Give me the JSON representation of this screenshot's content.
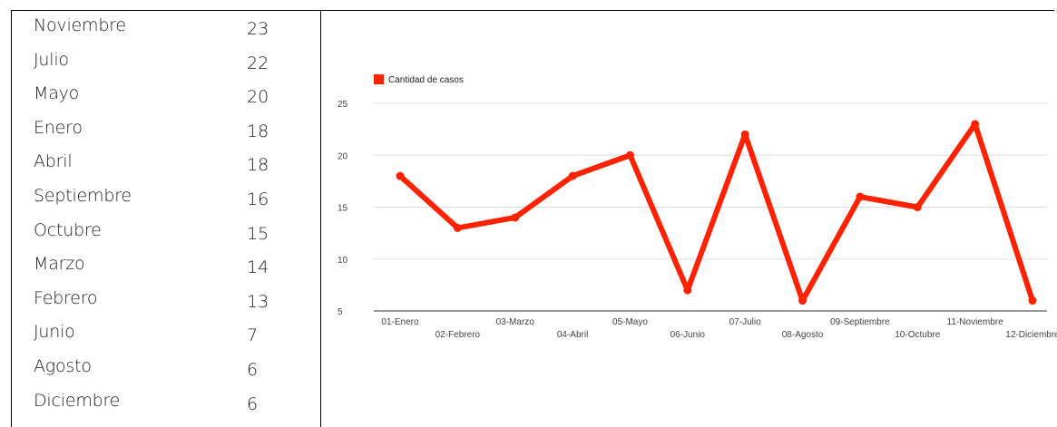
{
  "table": {
    "rows": [
      {
        "month": "Noviembre",
        "value": "23"
      },
      {
        "month": "Julio",
        "value": "22"
      },
      {
        "month": "Mayo",
        "value": "20"
      },
      {
        "month": "Enero",
        "value": "18"
      },
      {
        "month": "Abril",
        "value": "18"
      },
      {
        "month": "Septiembre",
        "value": "16"
      },
      {
        "month": "Octubre",
        "value": "15"
      },
      {
        "month": "Marzo",
        "value": "14"
      },
      {
        "month": "Febrero",
        "value": "13"
      },
      {
        "month": "Junio",
        "value": "7"
      },
      {
        "month": "Agosto",
        "value": "6"
      },
      {
        "month": "Diciembre",
        "value": "6"
      }
    ]
  },
  "chart_data": {
    "type": "line",
    "categories": [
      "01-Enero",
      "02-Febrero",
      "03-Marzo",
      "04-Abril",
      "05-Mayo",
      "06-Junio",
      "07-Julio",
      "08-Agosto",
      "09-Septiembre",
      "10-Octubre",
      "11-Noviembre",
      "12-Diciembre"
    ],
    "series": [
      {
        "name": "Cantidad de casos",
        "values": [
          18,
          13,
          14,
          18,
          20,
          7,
          22,
          6,
          16,
          15,
          23,
          6
        ],
        "color": "#ff2200"
      }
    ],
    "yticks": [
      5,
      10,
      15,
      20,
      25
    ],
    "ylim": [
      5,
      25
    ],
    "grid": true,
    "legend": "top-left",
    "colors": {
      "line": "#ff2200",
      "grid": "#dddddd",
      "axis": "#333333",
      "tick_label": "#444444"
    }
  }
}
